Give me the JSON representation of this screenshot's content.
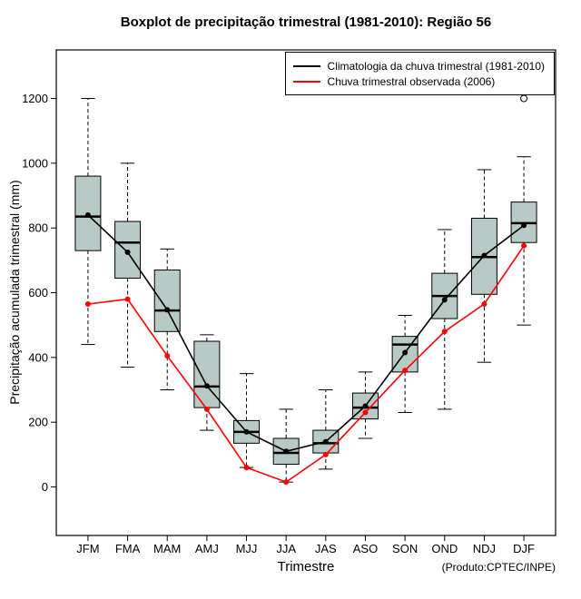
{
  "chart_data": {
    "type": "boxplot",
    "title": "Boxplot de precipitação trimestral (1981-2010): Região 56",
    "xlabel": "Trimestre",
    "ylabel": "Precipitação acumulada trimestral (mm)",
    "annotations": [
      "(Produto:CPTEC/INPE)"
    ],
    "categories": [
      "JFM",
      "FMA",
      "MAM",
      "AMJ",
      "MJJ",
      "JJA",
      "JAS",
      "ASO",
      "SON",
      "OND",
      "NDJ",
      "DJF"
    ],
    "y_ticks": [
      0,
      200,
      400,
      600,
      800,
      1000,
      1200
    ],
    "ylim": [
      -150,
      1350
    ],
    "grid": false,
    "legend_position": "top-right",
    "box_fill": "#b8cac5",
    "axis_color": "#000000",
    "boxes": [
      {
        "low": 440,
        "q1": 730,
        "median": 835,
        "q3": 960,
        "high": 1200,
        "outliers": []
      },
      {
        "low": 370,
        "q1": 645,
        "median": 755,
        "q3": 820,
        "high": 1000,
        "outliers": []
      },
      {
        "low": 300,
        "q1": 480,
        "median": 545,
        "q3": 670,
        "high": 735,
        "outliers": []
      },
      {
        "low": 175,
        "q1": 245,
        "median": 310,
        "q3": 450,
        "high": 470,
        "outliers": []
      },
      {
        "low": 60,
        "q1": 135,
        "median": 170,
        "q3": 205,
        "high": 350,
        "outliers": []
      },
      {
        "low": 15,
        "q1": 70,
        "median": 105,
        "q3": 150,
        "high": 240,
        "outliers": []
      },
      {
        "low": 55,
        "q1": 105,
        "median": 135,
        "q3": 175,
        "high": 300,
        "outliers": []
      },
      {
        "low": 150,
        "q1": 210,
        "median": 245,
        "q3": 290,
        "high": 355,
        "outliers": []
      },
      {
        "low": 230,
        "q1": 355,
        "median": 440,
        "q3": 465,
        "high": 530,
        "outliers": []
      },
      {
        "low": 240,
        "q1": 520,
        "median": 590,
        "q3": 660,
        "high": 795,
        "outliers": []
      },
      {
        "low": 385,
        "q1": 595,
        "median": 710,
        "q3": 830,
        "high": 980,
        "outliers": []
      },
      {
        "low": 500,
        "q1": 755,
        "median": 815,
        "q3": 880,
        "high": 1020,
        "outliers": [
          1200
        ]
      }
    ],
    "series": [
      {
        "name": "Climatologia da chuva trimestral (1981-2010)",
        "color": "#000000",
        "marker": "filled-circle",
        "values": [
          840,
          725,
          547,
          312,
          170,
          110,
          140,
          250,
          415,
          578,
          715,
          808
        ]
      },
      {
        "name": "Chuva trimestral observada (2006)",
        "color": "#ff0000",
        "marker": "filled-circle",
        "values": [
          565,
          580,
          405,
          240,
          60,
          15,
          100,
          230,
          360,
          480,
          565,
          745
        ]
      }
    ]
  }
}
